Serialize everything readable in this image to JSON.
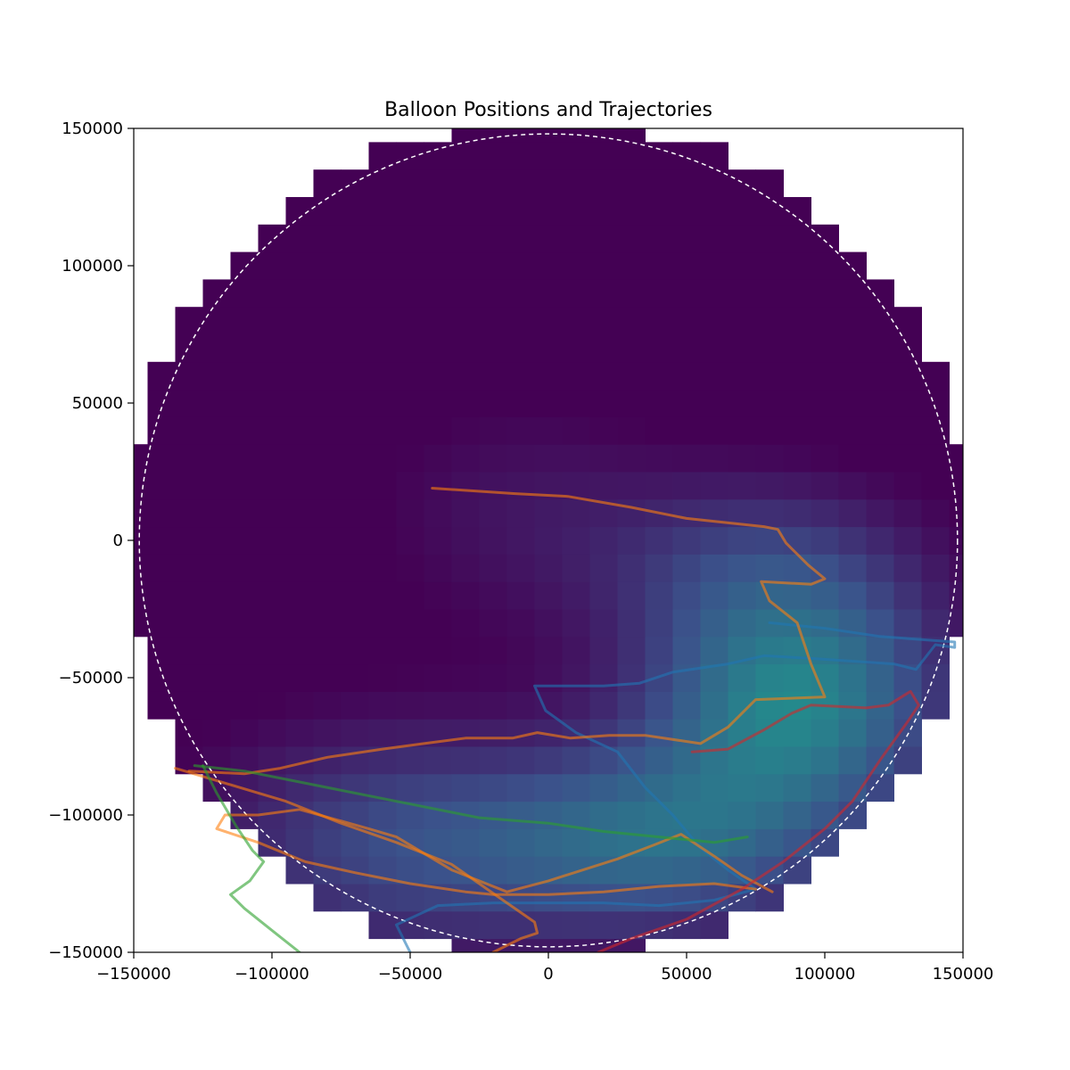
{
  "chart_data": {
    "type": "heatmap",
    "title": "Balloon Positions and Trajectories",
    "xlabel": "",
    "ylabel": "",
    "xlim": [
      -150000,
      150000
    ],
    "ylim": [
      -150000,
      150000
    ],
    "x_ticks": [
      "−150000",
      "−100000",
      "−50000",
      "0",
      "50000",
      "100000",
      "150000"
    ],
    "x_tick_values": [
      -150000,
      -100000,
      -50000,
      0,
      50000,
      100000,
      150000
    ],
    "y_ticks": [
      "−150000",
      "−100000",
      "−50000",
      "0",
      "50000",
      "100000",
      "150000"
    ],
    "y_tick_values": [
      -150000,
      -100000,
      -50000,
      0,
      50000,
      100000,
      150000
    ],
    "grid": false,
    "colormap": "viridis",
    "heatmap": {
      "cell_size": 10000,
      "domain_radius": 155000,
      "background_color": "#440154",
      "description_values_in_0_1": true
    },
    "circle": {
      "radius": 148000,
      "style": "dashed",
      "color": "#ffffff"
    },
    "trajectories": [
      {
        "color": "#1f77b4",
        "points": [
          [
            80000,
            -30000
          ],
          [
            100000,
            -32000
          ],
          [
            120000,
            -35000
          ],
          [
            147000,
            -37000
          ],
          [
            147000,
            -39000
          ],
          [
            140000,
            -38000
          ],
          [
            133000,
            -47000
          ],
          [
            125000,
            -45000
          ],
          [
            110000,
            -44000
          ],
          [
            95000,
            -43000
          ],
          [
            78000,
            -42000
          ],
          [
            65000,
            -45000
          ],
          [
            45000,
            -48000
          ],
          [
            33000,
            -52000
          ],
          [
            20000,
            -53000
          ],
          [
            -5000,
            -53000
          ],
          [
            -1000,
            -62000
          ],
          [
            10000,
            -70000
          ],
          [
            25000,
            -77000
          ],
          [
            35000,
            -90000
          ],
          [
            45000,
            -100000
          ],
          [
            55000,
            -112000
          ],
          [
            65000,
            -120000
          ],
          [
            75000,
            -127000
          ],
          [
            60000,
            -131000
          ],
          [
            40000,
            -133000
          ],
          [
            20000,
            -132000
          ],
          [
            0,
            -132000
          ],
          [
            -20000,
            -132000
          ],
          [
            -40000,
            -133000
          ],
          [
            -55000,
            -140000
          ],
          [
            -50000,
            -150000
          ]
        ]
      },
      {
        "color": "#ff7f0e",
        "points": [
          [
            -130000,
            -84000
          ],
          [
            -110000,
            -85000
          ],
          [
            -97000,
            -83000
          ],
          [
            -80000,
            -79000
          ],
          [
            -60000,
            -76000
          ],
          [
            -45000,
            -74000
          ],
          [
            -30000,
            -72000
          ],
          [
            -13000,
            -72000
          ],
          [
            -4000,
            -70000
          ],
          [
            8000,
            -72000
          ],
          [
            22000,
            -71000
          ],
          [
            35000,
            -71000
          ],
          [
            55000,
            -74000
          ],
          [
            65000,
            -68000
          ],
          [
            75000,
            -58000
          ],
          [
            100000,
            -57000
          ],
          [
            95000,
            -45000
          ],
          [
            90000,
            -30000
          ],
          [
            80000,
            -22000
          ],
          [
            77000,
            -15000
          ],
          [
            95000,
            -16000
          ],
          [
            100000,
            -14000
          ],
          [
            94000,
            -9000
          ],
          [
            86000,
            -1000
          ],
          [
            83000,
            4000
          ],
          [
            78000,
            5000
          ],
          [
            50000,
            8000
          ],
          [
            30000,
            12000
          ],
          [
            7000,
            16000
          ],
          [
            -12000,
            17000
          ],
          [
            -42000,
            19000
          ]
        ]
      },
      {
        "color": "#ff7f0e",
        "points": [
          [
            81000,
            -128000
          ],
          [
            70000,
            -122000
          ],
          [
            60000,
            -115000
          ],
          [
            48000,
            -107000
          ],
          [
            38000,
            -111000
          ],
          [
            25000,
            -116000
          ],
          [
            0,
            -124000
          ],
          [
            -15000,
            -128000
          ],
          [
            -35000,
            -120000
          ],
          [
            -55000,
            -108000
          ],
          [
            -65000,
            -105000
          ],
          [
            -90000,
            -98000
          ],
          [
            -105000,
            -100000
          ],
          [
            -117000,
            -100000
          ],
          [
            -120000,
            -105000
          ],
          [
            -105000,
            -110000
          ],
          [
            -88000,
            -117000
          ],
          [
            -70000,
            -121000
          ],
          [
            -50000,
            -125000
          ],
          [
            -30000,
            -128000
          ],
          [
            -20000,
            -129000
          ],
          [
            0,
            -129000
          ],
          [
            20000,
            -128000
          ],
          [
            40000,
            -126000
          ],
          [
            60000,
            -125000
          ],
          [
            75000,
            -127000
          ]
        ]
      },
      {
        "color": "#ff7f0e",
        "points": [
          [
            -135000,
            -83000
          ],
          [
            -115000,
            -89000
          ],
          [
            -95000,
            -95000
          ],
          [
            -75000,
            -103000
          ],
          [
            -55000,
            -110000
          ],
          [
            -35000,
            -118000
          ],
          [
            -25000,
            -125000
          ],
          [
            -15000,
            -132000
          ],
          [
            -5000,
            -139000
          ],
          [
            -4000,
            -143000
          ],
          [
            -10000,
            -145000
          ],
          [
            -20000,
            -150000
          ]
        ]
      },
      {
        "color": "#2ca02c",
        "points": [
          [
            -128000,
            -82000
          ],
          [
            -110000,
            -84000
          ],
          [
            -90000,
            -88000
          ],
          [
            -70000,
            -92000
          ],
          [
            -50000,
            -96000
          ],
          [
            -25000,
            -101000
          ],
          [
            0,
            -103000
          ],
          [
            20000,
            -106000
          ],
          [
            40000,
            -108000
          ],
          [
            60000,
            -110000
          ],
          [
            72000,
            -108000
          ]
        ]
      },
      {
        "color": "#2ca02c",
        "points": [
          [
            -125000,
            -82000
          ],
          [
            -120000,
            -92000
          ],
          [
            -113000,
            -104000
          ],
          [
            -107000,
            -113000
          ],
          [
            -103000,
            -117000
          ],
          [
            -108000,
            -124000
          ],
          [
            -115000,
            -129000
          ],
          [
            -110000,
            -134000
          ],
          [
            -100000,
            -142000
          ],
          [
            -90000,
            -150000
          ]
        ]
      },
      {
        "color": "#d62728",
        "points": [
          [
            52000,
            -77000
          ],
          [
            65000,
            -76000
          ],
          [
            78000,
            -69000
          ],
          [
            88000,
            -63000
          ],
          [
            95000,
            -60000
          ],
          [
            115000,
            -61000
          ],
          [
            123000,
            -60000
          ],
          [
            131000,
            -55000
          ],
          [
            134000,
            -60000
          ],
          [
            130000,
            -66000
          ],
          [
            120000,
            -80000
          ],
          [
            110000,
            -95000
          ],
          [
            100000,
            -105000
          ],
          [
            85000,
            -117000
          ],
          [
            70000,
            -127000
          ],
          [
            50000,
            -138000
          ],
          [
            30000,
            -145000
          ],
          [
            18000,
            -150000
          ]
        ]
      }
    ]
  }
}
